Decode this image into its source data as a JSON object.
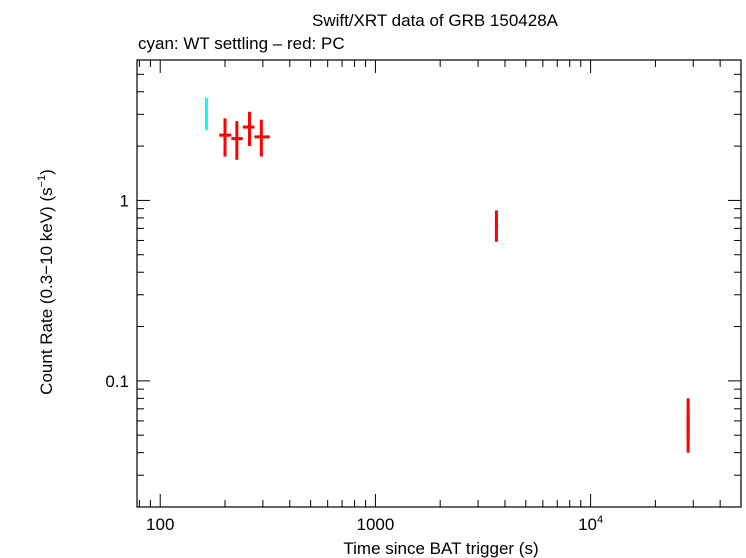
{
  "chart_data": {
    "type": "scatter",
    "title": "Swift/XRT data of GRB 150428A",
    "subtitle": "cyan: WT settling – red: PC",
    "xlabel": "Time since BAT trigger (s)",
    "ylabel_main": "Count Rate (0.3−10 keV) (s",
    "ylabel_sup": "−1",
    "ylabel_end": ")",
    "x_scale": "log",
    "y_scale": "log",
    "xlim": [
      78,
      50000
    ],
    "ylim": [
      0.02,
      6.0
    ],
    "x_ticks": [
      {
        "value": 100,
        "label": "100"
      },
      {
        "value": 1000,
        "label": "1000"
      },
      {
        "value": 10000,
        "base": "10",
        "exp": "4"
      }
    ],
    "y_ticks": [
      {
        "value": 0.1,
        "label": "0.1"
      },
      {
        "value": 1,
        "label": "1"
      }
    ],
    "colors": {
      "wt": "#00ffff",
      "pc": "#ff0000",
      "frame": "#000000"
    },
    "series": [
      {
        "color": "#00ffff",
        "points": [
          {
            "x": 164,
            "xerr": [
              162,
              166
            ],
            "y": 3.0,
            "yerr": [
              2.45,
              3.7
            ]
          }
        ]
      },
      {
        "color": "#ff0000",
        "points": [
          {
            "x": 200,
            "xerr": [
              188,
              214
            ],
            "y": 2.3,
            "yerr": [
              1.75,
              2.85
            ]
          },
          {
            "x": 227,
            "xerr": [
              214,
              242
            ],
            "y": 2.2,
            "yerr": [
              1.68,
              2.75
            ]
          },
          {
            "x": 260,
            "xerr": [
              242,
              274
            ],
            "y": 2.55,
            "yerr": [
              2.0,
              3.1
            ]
          },
          {
            "x": 295,
            "xerr": [
              274,
              323
            ],
            "y": 2.25,
            "yerr": [
              1.75,
              2.8
            ]
          },
          {
            "x": 3650,
            "xerr": [
              3600,
              3720
            ],
            "y": 0.73,
            "yerr": [
              0.59,
              0.88
            ]
          },
          {
            "x": 28400,
            "xerr": [
              28300,
              28500
            ],
            "y": 0.062,
            "yerr": [
              0.048,
              0.08
            ]
          },
          {
            "x": 28400,
            "xerr": [
              28300,
              28500
            ],
            "y": 0.053,
            "yerr": [
              0.04,
              0.066
            ]
          }
        ]
      }
    ]
  }
}
